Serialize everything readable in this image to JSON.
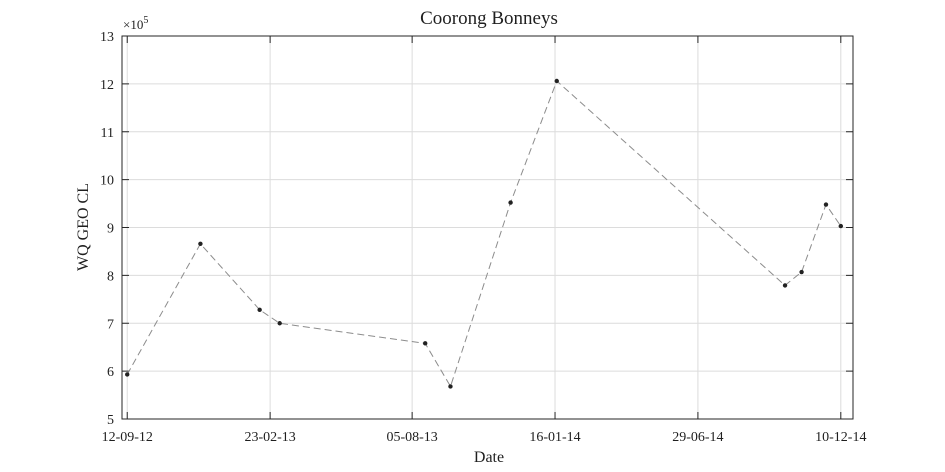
{
  "chart_data": {
    "type": "line",
    "title": "Coorong Bonneys",
    "xlabel": "Date",
    "ylabel": "WQ GEO CL",
    "y_multiplier_label": "×10",
    "y_multiplier_exponent": "5",
    "y_multiplier": 100000,
    "x_ticks": [
      "12-09-12",
      "23-02-13",
      "05-08-13",
      "16-01-14",
      "29-06-14",
      "10-12-14"
    ],
    "y_ticks": [
      "5",
      "6",
      "7",
      "8",
      "9",
      "10",
      "11",
      "12",
      "13"
    ],
    "xlim": [
      "2012-09-06",
      "2014-12-24"
    ],
    "ylim": [
      500000,
      1300000
    ],
    "grid": true,
    "line_style": "dashed",
    "line_color": "#8c8c8c",
    "marker_color": "#222222",
    "series": [
      {
        "points": [
          {
            "x": "2012-09-12",
            "y": 593000
          },
          {
            "x": "2012-12-05",
            "y": 866000
          },
          {
            "x": "2013-02-11",
            "y": 728000
          },
          {
            "x": "2013-03-06",
            "y": 700000
          },
          {
            "x": "2013-08-20",
            "y": 658000
          },
          {
            "x": "2013-09-18",
            "y": 568000
          },
          {
            "x": "2013-11-26",
            "y": 952000
          },
          {
            "x": "2014-01-18",
            "y": 1206000
          },
          {
            "x": "2014-10-07",
            "y": 779000
          },
          {
            "x": "2014-10-26",
            "y": 807000
          },
          {
            "x": "2014-11-23",
            "y": 948000
          },
          {
            "x": "2014-12-10",
            "y": 903000
          }
        ]
      }
    ]
  }
}
